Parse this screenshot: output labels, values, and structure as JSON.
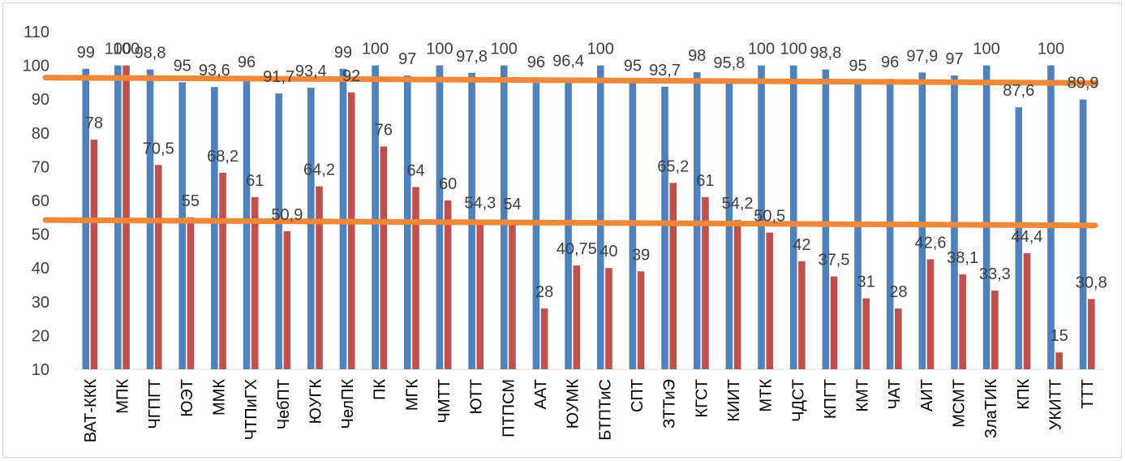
{
  "chart_data": {
    "type": "bar",
    "title": "",
    "xlabel": "",
    "ylabel": "",
    "ylim": [
      10,
      110
    ],
    "yticks": [
      10,
      20,
      30,
      40,
      50,
      60,
      70,
      80,
      90,
      100,
      110
    ],
    "grid": false,
    "legend": "none",
    "categories": [
      "ВАТ-ККК",
      "МПК",
      "ЧГПГТ",
      "ЮЭТ",
      "ММК",
      "ЧТПиГХ",
      "ЧебПТ",
      "ЮУГК",
      "ЧелПК",
      "ПК",
      "МГК",
      "ЧМТТ",
      "ЮТТ",
      "ПТПСМ",
      "ААТ",
      "ЮУМК",
      "БТПТиС",
      "СПТ",
      "ЗТТиЭ",
      "КГСТ",
      "КИИТ",
      "МТК",
      "ЧДСТ",
      "КПГТ",
      "КМТ",
      "ЧАТ",
      "АИТ",
      "МСМТ",
      "ЗлаТИК",
      "КПК",
      "УКИТТ",
      "ТТТ"
    ],
    "series": [
      {
        "color": "#4f81bd",
        "values": [
          99,
          100,
          98.8,
          95,
          93.6,
          96,
          91.7,
          93.4,
          99,
          100,
          97,
          100,
          97.8,
          100,
          96,
          96.4,
          100,
          95,
          93.7,
          98,
          95.8,
          100,
          100,
          98.8,
          95,
          96,
          97.9,
          97,
          100,
          87.6,
          100,
          89.9
        ],
        "labels": [
          "99",
          "100",
          "98,8",
          "95",
          "93,6",
          "96",
          "91,7",
          "93,4",
          "99",
          "100",
          "97",
          "100",
          "97,8",
          "100",
          "96",
          "96,4",
          "100",
          "95",
          "93,7",
          "98",
          "95,8",
          "100",
          "100",
          "98,8",
          "95",
          "96",
          "97,9",
          "97",
          "100",
          "87,6",
          "100",
          "89,9"
        ]
      },
      {
        "color": "#c0504d",
        "values": [
          78,
          100,
          70.5,
          55,
          68.2,
          61,
          50.9,
          64.2,
          92,
          76,
          64,
          60,
          54.3,
          54,
          28,
          40.75,
          40,
          39,
          65.2,
          61,
          54.2,
          50.5,
          42,
          37.5,
          31,
          28,
          42.6,
          38.1,
          33.3,
          44.4,
          15,
          30.8
        ],
        "labels": [
          "78",
          "100",
          "70,5",
          "55",
          "68,2",
          "61",
          "50,9",
          "64,2",
          "92",
          "76",
          "64",
          "60",
          "54,3",
          "54",
          "28",
          "40,75",
          "40",
          "39",
          "65,2",
          "61",
          "54,2",
          "50,5",
          "42",
          "37,5",
          "31",
          "28",
          "42,6",
          "38,1",
          "33,3",
          "44,4",
          "15",
          "30,8"
        ]
      }
    ],
    "trendlines": [
      {
        "color": "#f0883a",
        "from": 96.4,
        "to": 94.8
      },
      {
        "color": "#f0883a",
        "from": 54.2,
        "to": 52.6
      }
    ]
  }
}
